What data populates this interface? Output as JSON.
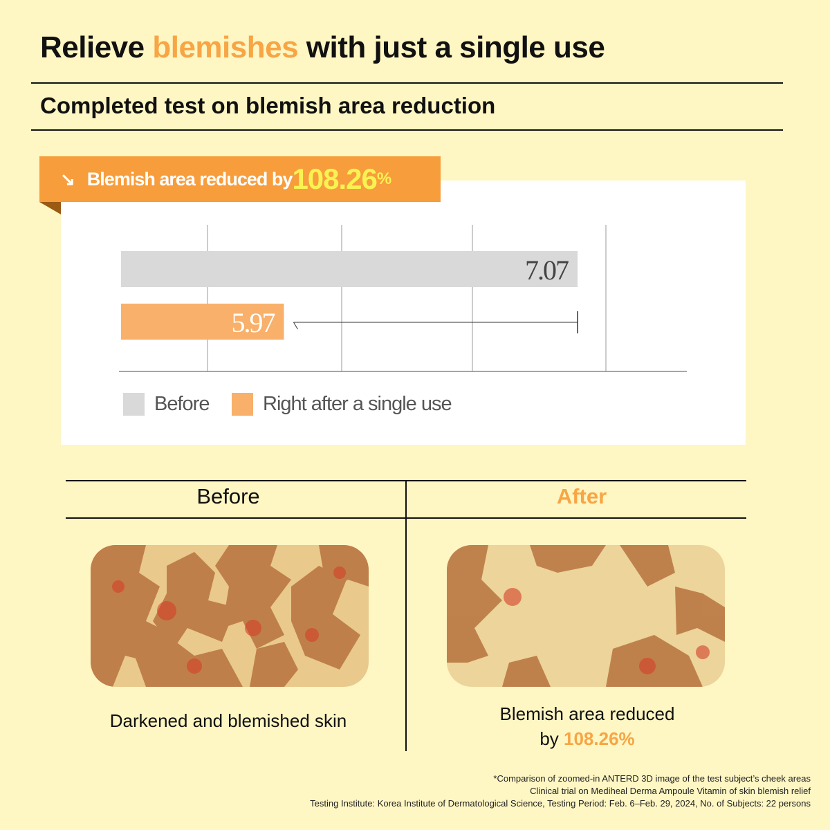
{
  "title": {
    "pre": "Relieve ",
    "highlight": "blemishes",
    "post": " with just a single use"
  },
  "subtitle": "Completed test on blemish area reduction",
  "banner": {
    "icon": "arrow-down-right-icon",
    "text": "Blemish area reduced by ",
    "value": "108.26",
    "unit": "%"
  },
  "colors": {
    "accent": "#f79d3c",
    "before_bar": "#d9d9d9",
    "after_bar": "#f8b06a",
    "highlight": "#f8f352"
  },
  "chart_data": {
    "type": "bar",
    "orientation": "horizontal",
    "categories": [
      "Before",
      "Right after a single use"
    ],
    "values": [
      7.07,
      5.97
    ],
    "labels": [
      "7.07",
      "5.97"
    ],
    "xlim": [
      5.36,
      7.6
    ],
    "grid": true,
    "legend": "bottom-left"
  },
  "comparison": {
    "before": {
      "header": "Before",
      "caption": "Darkened and blemished skin"
    },
    "after": {
      "header": "After",
      "caption_line1": "Blemish area reduced",
      "caption_pre": "by ",
      "caption_value": "108.26%"
    }
  },
  "footnotes": [
    "*Comparison of zoomed-in ANTERD 3D image of the test subject’s cheek areas",
    "Clinical trial on Mediheal Derma Ampoule Vitamin of skin blemish relief",
    "Testing Institute: Korea Institute of Dermatological Science, Testing Period: Feb. 6–Feb. 29, 2024, No. of Subjects: 22 persons"
  ]
}
